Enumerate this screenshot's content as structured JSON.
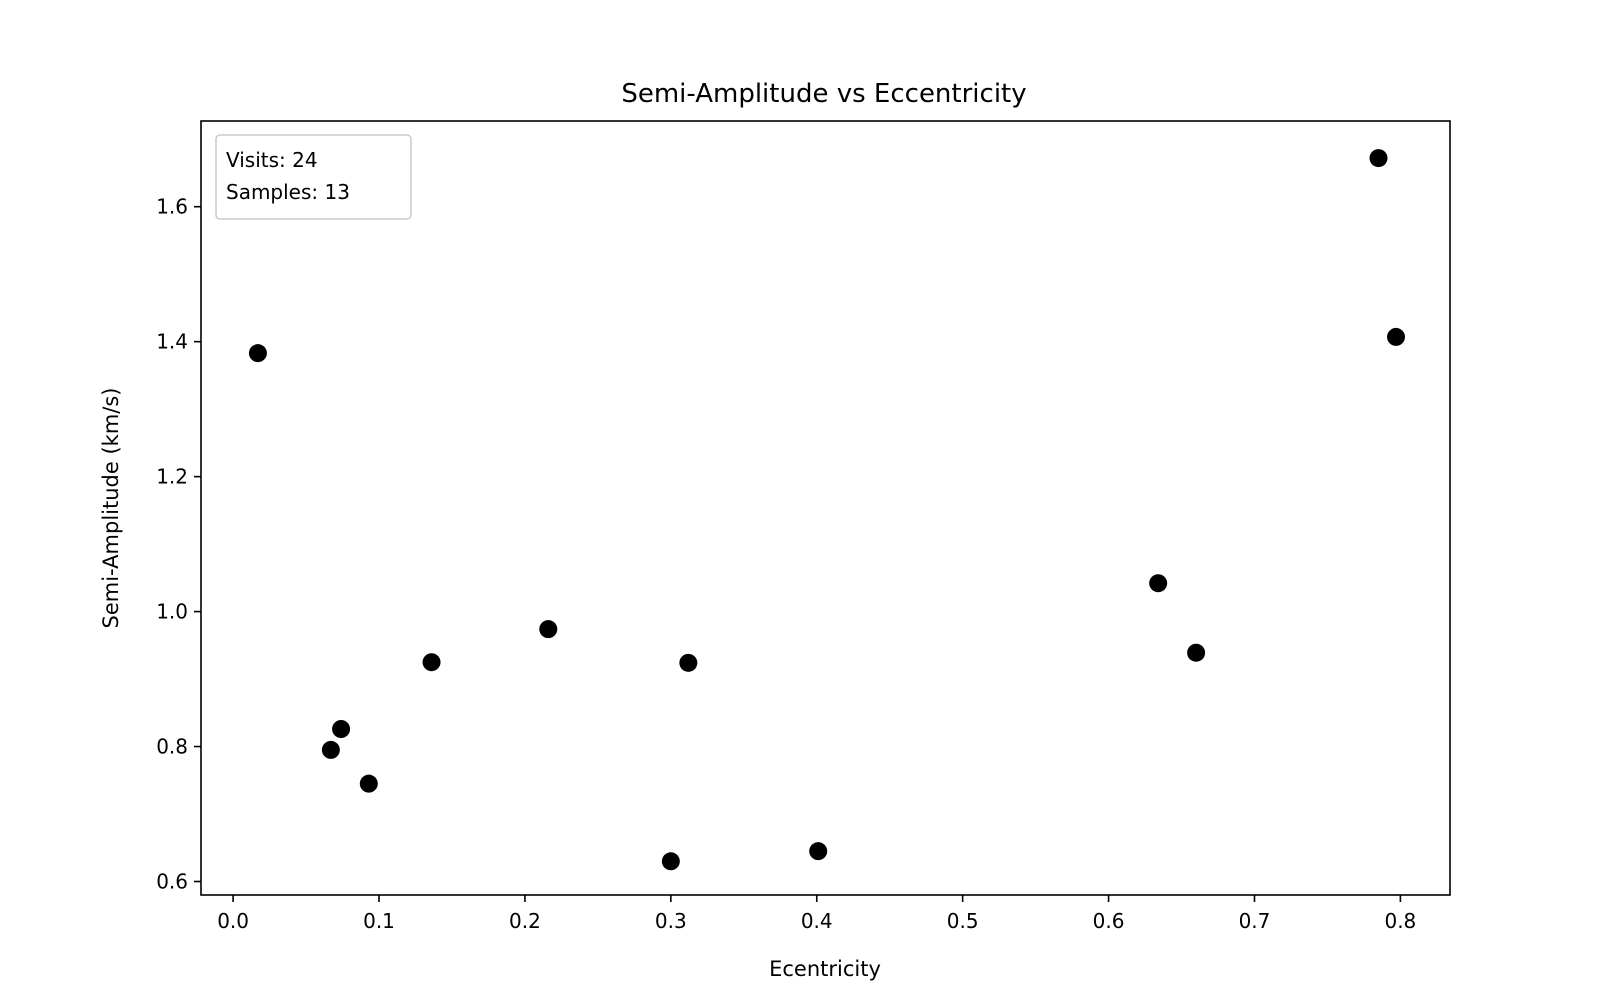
{
  "chart_data": {
    "type": "scatter",
    "title": "Semi-Amplitude vs Eccentricity",
    "xlabel": "Ecentricity",
    "ylabel": "Semi-Amplitude (km/s)",
    "xlim": [
      -0.022,
      0.834
    ],
    "ylim": [
      0.58,
      1.727
    ],
    "x_ticks": [
      {
        "value": 0.0,
        "label": "0.0"
      },
      {
        "value": 0.1,
        "label": "0.1"
      },
      {
        "value": 0.2,
        "label": "0.2"
      },
      {
        "value": 0.3,
        "label": "0.3"
      },
      {
        "value": 0.4,
        "label": "0.4"
      },
      {
        "value": 0.5,
        "label": "0.5"
      },
      {
        "value": 0.6,
        "label": "0.6"
      },
      {
        "value": 0.7,
        "label": "0.7"
      },
      {
        "value": 0.8,
        "label": "0.8"
      }
    ],
    "y_ticks": [
      {
        "value": 0.6,
        "label": "0.6"
      },
      {
        "value": 0.8,
        "label": "0.8"
      },
      {
        "value": 1.0,
        "label": "1.0"
      },
      {
        "value": 1.2,
        "label": "1.2"
      },
      {
        "value": 1.4,
        "label": "1.4"
      },
      {
        "value": 1.6,
        "label": "1.6"
      }
    ],
    "grid": false,
    "legend_position": "top-left",
    "annotation_lines": [
      "Visits: 24",
      "Samples: 13"
    ],
    "marker_color": "#000000",
    "series": [
      {
        "points": [
          {
            "x": 0.017,
            "y": 1.383
          },
          {
            "x": 0.067,
            "y": 0.795
          },
          {
            "x": 0.074,
            "y": 0.826
          },
          {
            "x": 0.093,
            "y": 0.745
          },
          {
            "x": 0.136,
            "y": 0.925
          },
          {
            "x": 0.216,
            "y": 0.974
          },
          {
            "x": 0.3,
            "y": 0.63
          },
          {
            "x": 0.312,
            "y": 0.924
          },
          {
            "x": 0.401,
            "y": 0.645
          },
          {
            "x": 0.634,
            "y": 1.042
          },
          {
            "x": 0.66,
            "y": 0.939
          },
          {
            "x": 0.785,
            "y": 1.672
          },
          {
            "x": 0.797,
            "y": 1.407
          }
        ]
      }
    ]
  }
}
